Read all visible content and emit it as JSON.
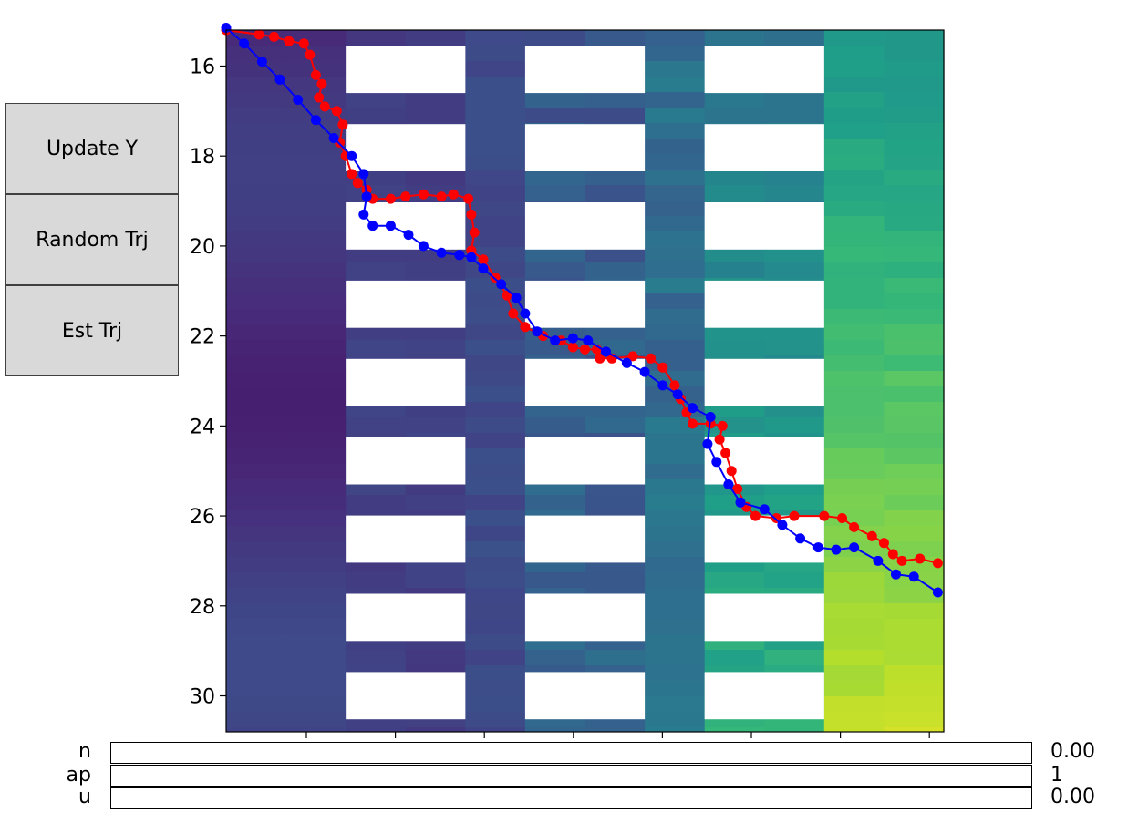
{
  "buttons": {
    "update_y": "Update Y",
    "random_trj": "Random Trj",
    "est_trj": "Est Trj"
  },
  "sliders": [
    {
      "label": "n",
      "value": "0.00"
    },
    {
      "label": "ap",
      "value": "1"
    },
    {
      "label": "u",
      "value": "0.00"
    }
  ],
  "chart_data": {
    "type": "heatmap",
    "title": "",
    "xlabel": "",
    "ylabel": "",
    "ylim": [
      30.8,
      15.2
    ],
    "y_ticks": [
      "16",
      "18",
      "20",
      "22",
      "24",
      "26",
      "28",
      "30"
    ],
    "x_tick_labels": "",
    "colormap": "viridis",
    "series": [
      {
        "color": "#ff0000",
        "marker": "circle",
        "points": [
          [
            0.0,
            15.2
          ],
          [
            0.55,
            15.3
          ],
          [
            0.8,
            15.35
          ],
          [
            1.05,
            15.45
          ],
          [
            1.3,
            15.5
          ],
          [
            1.4,
            15.75
          ],
          [
            1.5,
            16.2
          ],
          [
            1.6,
            16.4
          ],
          [
            1.55,
            16.7
          ],
          [
            1.65,
            16.9
          ],
          [
            1.85,
            17.0
          ],
          [
            1.95,
            17.3
          ],
          [
            1.9,
            17.7
          ],
          [
            2.0,
            18.0
          ],
          [
            2.1,
            18.4
          ],
          [
            2.2,
            18.6
          ],
          [
            2.35,
            18.75
          ],
          [
            2.45,
            18.95
          ],
          [
            2.75,
            18.95
          ],
          [
            3.0,
            18.9
          ],
          [
            3.3,
            18.85
          ],
          [
            3.6,
            18.9
          ],
          [
            3.8,
            18.85
          ],
          [
            4.05,
            18.95
          ],
          [
            4.1,
            19.3
          ],
          [
            4.15,
            19.7
          ],
          [
            4.1,
            20.1
          ],
          [
            4.3,
            20.3
          ],
          [
            4.5,
            20.7
          ],
          [
            4.7,
            21.1
          ],
          [
            4.8,
            21.5
          ],
          [
            5.0,
            21.8
          ],
          [
            5.3,
            22.0
          ],
          [
            5.6,
            22.1
          ],
          [
            5.8,
            22.25
          ],
          [
            6.0,
            22.3
          ],
          [
            6.2,
            22.3
          ],
          [
            6.25,
            22.5
          ],
          [
            6.45,
            22.5
          ],
          [
            6.8,
            22.45
          ],
          [
            7.1,
            22.5
          ],
          [
            7.3,
            22.7
          ],
          [
            7.5,
            23.1
          ],
          [
            7.6,
            23.4
          ],
          [
            7.7,
            23.7
          ],
          [
            7.8,
            23.95
          ],
          [
            8.1,
            23.95
          ],
          [
            8.3,
            24.0
          ],
          [
            8.25,
            24.3
          ],
          [
            8.35,
            24.6
          ],
          [
            8.45,
            25.0
          ],
          [
            8.55,
            25.4
          ],
          [
            8.7,
            25.8
          ],
          [
            8.85,
            26.0
          ],
          [
            9.2,
            26.05
          ],
          [
            9.5,
            26.0
          ],
          [
            10.0,
            26.0
          ],
          [
            10.3,
            26.05
          ],
          [
            10.5,
            26.25
          ],
          [
            10.8,
            26.45
          ],
          [
            11.0,
            26.6
          ],
          [
            11.15,
            26.85
          ],
          [
            11.3,
            27.0
          ],
          [
            11.6,
            26.95
          ],
          [
            11.9,
            27.05
          ]
        ]
      },
      {
        "color": "#0000ff",
        "marker": "circle",
        "points": [
          [
            0.0,
            15.15
          ],
          [
            0.3,
            15.5
          ],
          [
            0.6,
            15.9
          ],
          [
            0.9,
            16.3
          ],
          [
            1.2,
            16.75
          ],
          [
            1.5,
            17.2
          ],
          [
            1.8,
            17.6
          ],
          [
            2.1,
            18.0
          ],
          [
            2.3,
            18.4
          ],
          [
            2.35,
            18.9
          ],
          [
            2.3,
            19.3
          ],
          [
            2.45,
            19.55
          ],
          [
            2.75,
            19.55
          ],
          [
            3.05,
            19.75
          ],
          [
            3.3,
            20.0
          ],
          [
            3.6,
            20.15
          ],
          [
            3.9,
            20.2
          ],
          [
            4.1,
            20.25
          ],
          [
            4.3,
            20.5
          ],
          [
            4.6,
            20.85
          ],
          [
            4.85,
            21.15
          ],
          [
            5.0,
            21.5
          ],
          [
            5.2,
            21.9
          ],
          [
            5.5,
            22.1
          ],
          [
            5.8,
            22.05
          ],
          [
            6.05,
            22.1
          ],
          [
            6.35,
            22.35
          ],
          [
            6.7,
            22.6
          ],
          [
            7.0,
            22.8
          ],
          [
            7.3,
            23.1
          ],
          [
            7.55,
            23.3
          ],
          [
            7.8,
            23.6
          ],
          [
            8.1,
            23.8
          ],
          [
            8.05,
            24.4
          ],
          [
            8.2,
            24.8
          ],
          [
            8.4,
            25.3
          ],
          [
            8.6,
            25.7
          ],
          [
            9.0,
            25.85
          ],
          [
            9.3,
            26.2
          ],
          [
            9.6,
            26.5
          ],
          [
            9.9,
            26.7
          ],
          [
            10.2,
            26.75
          ],
          [
            10.5,
            26.7
          ],
          [
            10.9,
            27.0
          ],
          [
            11.2,
            27.3
          ],
          [
            11.5,
            27.35
          ],
          [
            11.9,
            27.7
          ]
        ]
      }
    ]
  }
}
